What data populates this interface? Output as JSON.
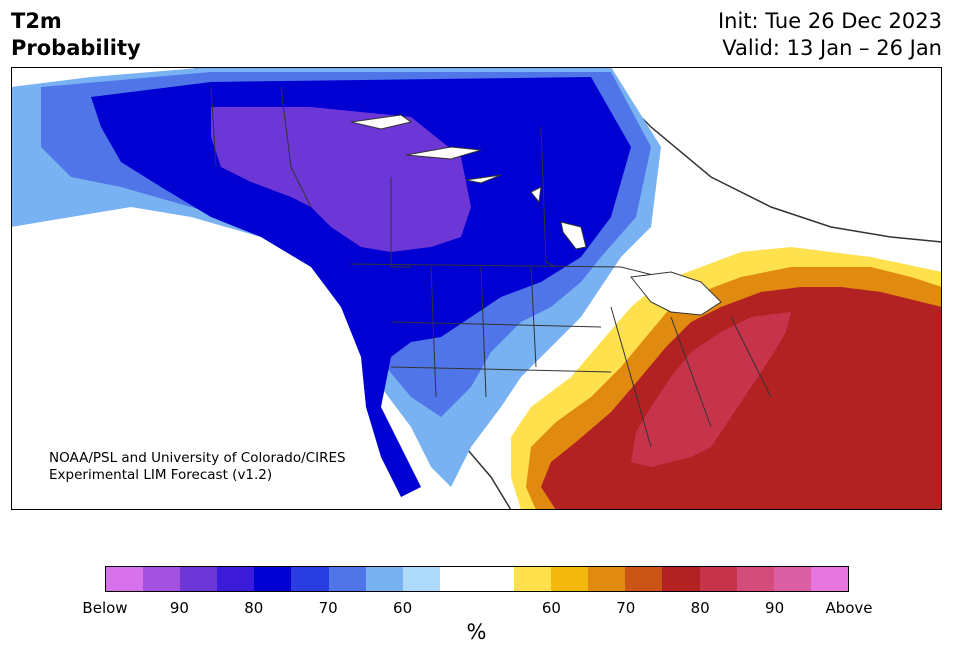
{
  "header": {
    "title_line1": "T2m",
    "title_line2": "Probability",
    "init": "Init: Tue 26 Dec 2023",
    "valid": "Valid: 13 Jan – 26 Jan"
  },
  "credit": {
    "line1": "NOAA/PSL and University of Colorado/CIRES",
    "line2": "Experimental LIM Forecast (v1.2)"
  },
  "colorbar": {
    "colors": [
      "#d772ea",
      "#a451e0",
      "#6c37d6",
      "#3b1ad9",
      "#0000d2",
      "#2a3de0",
      "#4f75e8",
      "#78b2f2",
      "#aedbfb",
      "#ffffff",
      "#ffffff",
      "#fee14c",
      "#f4b70c",
      "#e08a10",
      "#cb5516",
      "#b32222",
      "#c6344c",
      "#d34d7b",
      "#db5fa5",
      "#e776df"
    ],
    "tick_labels": [
      "Below",
      "90",
      "80",
      "70",
      "60",
      "60",
      "70",
      "80",
      "90",
      "Above"
    ],
    "unit": "%"
  },
  "map_colors": {
    "cold_far": "#78b2f2",
    "cold_mid": "#4f75e8",
    "cold_core": "#0000d2",
    "cold_deep": "#6c37d6",
    "warm_edge": "#fee14c",
    "warm_mid": "#e08a10",
    "warm_core": "#b32222",
    "warm_deep": "#c6344c",
    "borders": "#333333"
  }
}
